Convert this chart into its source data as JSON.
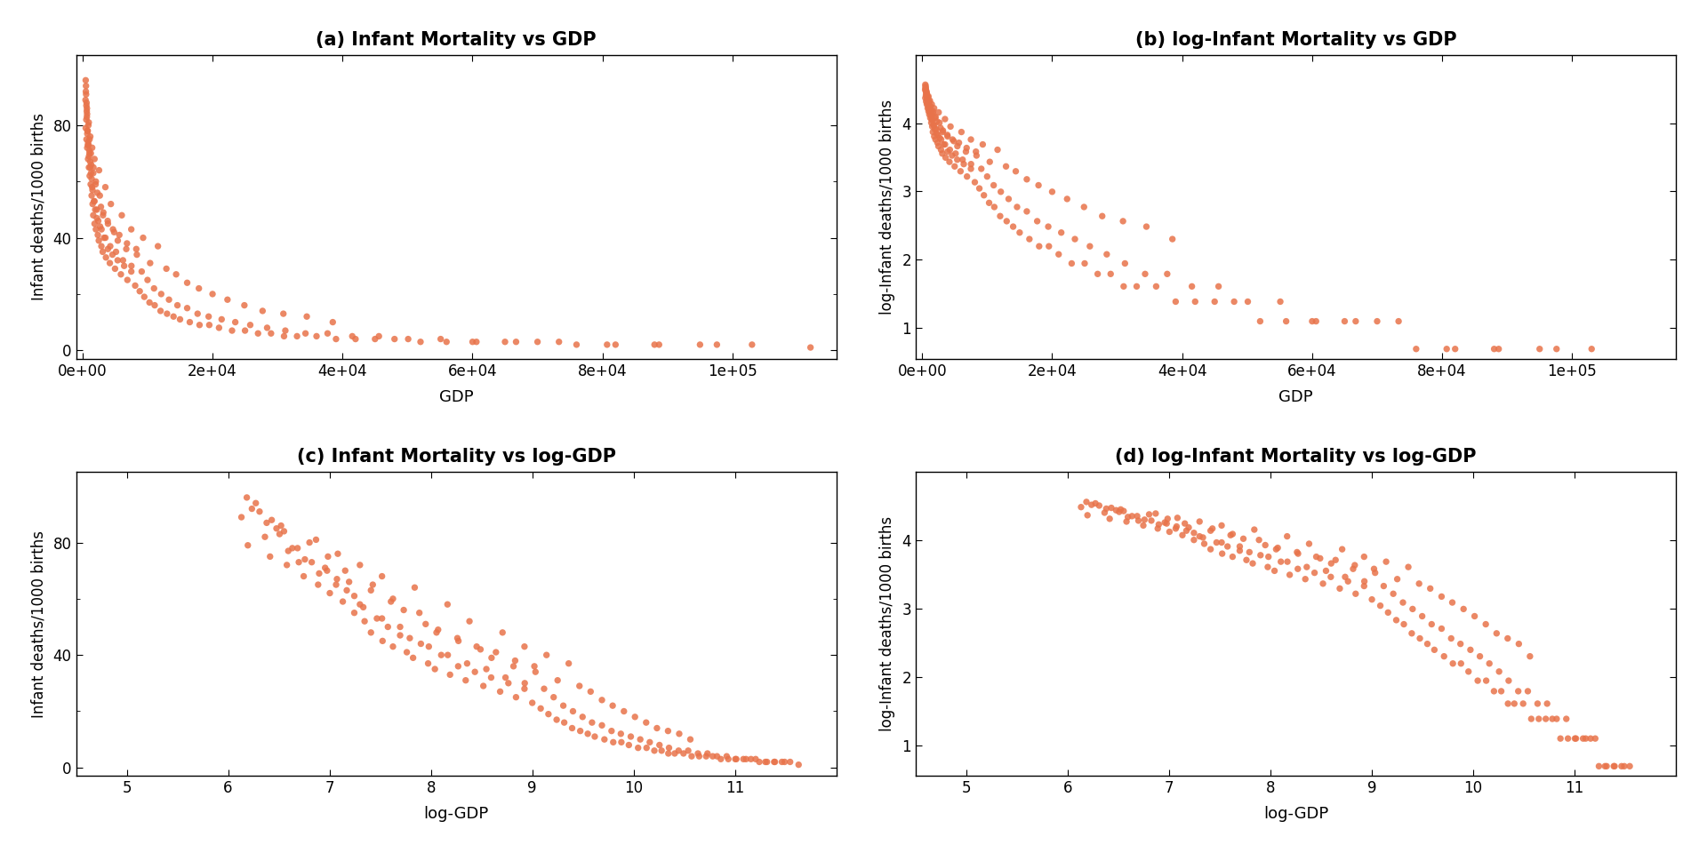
{
  "title_a": "(a) Infant Mortality vs GDP",
  "title_b": "(b) log-Infant Mortality vs GDP",
  "title_c": "(c) Infant Mortality vs log-GDP",
  "title_d": "(d) log-Infant Mortality vs log-GDP",
  "xlabel_ab": "GDP",
  "xlabel_cd": "log-GDP",
  "ylabel_ac": "Infant deaths/1000 births",
  "ylabel_bd": "log-Infant deaths/1000 births",
  "dot_color": "#E8734A",
  "background_color": "#ffffff",
  "gdp_raw": [
    485,
    550,
    620,
    700,
    490,
    530,
    610,
    680,
    720,
    800,
    850,
    920,
    980,
    1050,
    1100,
    1180,
    1250,
    1300,
    1400,
    1480,
    1550,
    1650,
    1750,
    1850,
    1950,
    2050,
    2200,
    2350,
    2500,
    2700,
    2900,
    3100,
    3300,
    3600,
    3900,
    4200,
    4600,
    5000,
    5400,
    5900,
    6400,
    6900,
    7500,
    8100,
    8800,
    9500,
    10300,
    11100,
    12000,
    13000,
    14000,
    15000,
    16500,
    18000,
    19500,
    21000,
    23000,
    25000,
    27000,
    29000,
    31000,
    33000,
    36000,
    39000,
    42000,
    45000,
    48000,
    52000,
    56000,
    60000,
    65000,
    70000,
    76000,
    82000,
    88000,
    95000,
    103000,
    112000,
    460,
    580,
    650,
    730,
    810,
    900,
    990,
    1080,
    1170,
    1280,
    1400,
    1530,
    1680,
    1840,
    2010,
    2200,
    2420,
    2660,
    2920,
    3200,
    3520,
    3870,
    4260,
    4680,
    5150,
    5660,
    6220,
    6840,
    7520,
    8270,
    9100,
    10000,
    11000,
    12100,
    13300,
    14600,
    16100,
    17700,
    19400,
    21400,
    23500,
    25800,
    28400,
    31200,
    34300,
    37700,
    41500,
    45600,
    50100,
    55100,
    60600,
    66700,
    73300,
    80700,
    88700,
    97600,
    510,
    590,
    670,
    760,
    860,
    960,
    1070,
    1190,
    1330,
    1480,
    1650,
    1840,
    2050,
    2280,
    2540,
    2830,
    3150,
    3510,
    3910,
    4360,
    4860,
    5420,
    6040,
    6730,
    7500,
    8360,
    9320,
    10400,
    11600,
    12900,
    14400,
    16100,
    17900,
    20000,
    22300,
    24900,
    27700,
    30900,
    34500,
    38500
  ],
  "im_raw": [
    96,
    91,
    88,
    84,
    79,
    94,
    75,
    86,
    72,
    78,
    68,
    73,
    65,
    71,
    62,
    67,
    59,
    63,
    55,
    58,
    52,
    48,
    53,
    45,
    50,
    43,
    47,
    41,
    39,
    44,
    37,
    35,
    40,
    33,
    36,
    31,
    34,
    29,
    32,
    27,
    30,
    25,
    28,
    23,
    21,
    19,
    17,
    16,
    14,
    13,
    12,
    11,
    10,
    9,
    9,
    8,
    7,
    7,
    6,
    6,
    5,
    5,
    5,
    4,
    4,
    4,
    4,
    3,
    3,
    3,
    3,
    3,
    2,
    2,
    2,
    2,
    2,
    1,
    89,
    82,
    85,
    77,
    73,
    80,
    69,
    75,
    65,
    70,
    61,
    57,
    65,
    53,
    59,
    50,
    46,
    55,
    43,
    49,
    40,
    46,
    37,
    43,
    35,
    41,
    32,
    38,
    30,
    36,
    28,
    25,
    22,
    20,
    18,
    16,
    15,
    13,
    12,
    11,
    10,
    9,
    8,
    7,
    6,
    6,
    5,
    5,
    4,
    4,
    3,
    3,
    3,
    2,
    2,
    2,
    92,
    87,
    83,
    78,
    74,
    81,
    70,
    76,
    66,
    72,
    63,
    68,
    60,
    56,
    64,
    51,
    48,
    58,
    45,
    52,
    42,
    39,
    48,
    36,
    43,
    34,
    40,
    31,
    37,
    29,
    27,
    24,
    22,
    20,
    18,
    16,
    14,
    13,
    12,
    10
  ]
}
